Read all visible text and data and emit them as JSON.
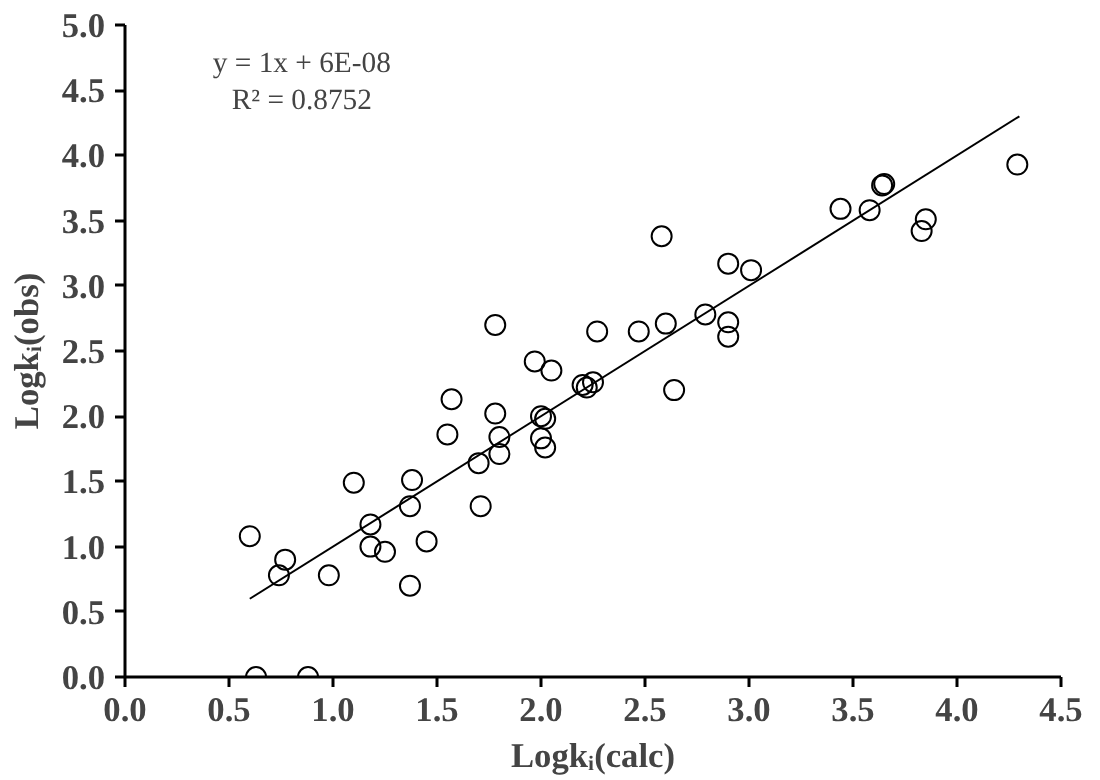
{
  "chart_data": {
    "type": "scatter",
    "xlabel": "Logkᵢ(calc)",
    "ylabel": "Logkᵢ(obs)",
    "xlim": [
      0,
      4.5
    ],
    "ylim": [
      0,
      5
    ],
    "xticks": [
      {
        "value": 0,
        "label": "0.0"
      },
      {
        "value": 0.5,
        "label": "0.5"
      },
      {
        "value": 1,
        "label": "1.0"
      },
      {
        "value": 1.5,
        "label": "1.5"
      },
      {
        "value": 2,
        "label": "2.0"
      },
      {
        "value": 2.5,
        "label": "2.5"
      },
      {
        "value": 3,
        "label": "3.0"
      },
      {
        "value": 3.5,
        "label": "3.5"
      },
      {
        "value": 4,
        "label": "4.0"
      },
      {
        "value": 4.5,
        "label": "4.5"
      }
    ],
    "yticks": [
      {
        "value": 0,
        "label": "0.0"
      },
      {
        "value": 0.5,
        "label": "0.5"
      },
      {
        "value": 1,
        "label": "1.0"
      },
      {
        "value": 1.5,
        "label": "1.5"
      },
      {
        "value": 2,
        "label": "2.0"
      },
      {
        "value": 2.5,
        "label": "2.5"
      },
      {
        "value": 3,
        "label": "3.0"
      },
      {
        "value": 3.5,
        "label": "3.5"
      },
      {
        "value": 4,
        "label": "4.0"
      },
      {
        "value": 4.5,
        "label": "4.5"
      },
      {
        "value": 5,
        "label": "5.0"
      }
    ],
    "grid": false,
    "annotations": [
      "y = 1x + 6E-08",
      "R² = 0.8752"
    ],
    "series": [
      {
        "marker": "circle",
        "color": "#000000",
        "x": [
          0.6,
          0.63,
          0.74,
          0.77,
          0.88,
          0.98,
          1.1,
          1.18,
          1.18,
          1.25,
          1.37,
          1.38,
          1.37,
          1.45,
          1.55,
          1.57,
          1.7,
          1.71,
          1.78,
          1.78,
          1.8,
          1.8,
          1.97,
          2.0,
          2.0,
          2.02,
          2.05,
          2.02,
          2.2,
          2.22,
          2.25,
          2.27,
          2.47,
          2.58,
          2.6,
          2.64,
          2.79,
          2.9,
          2.9,
          2.9,
          3.01,
          3.44,
          3.58,
          3.65,
          3.64,
          3.83,
          3.85,
          4.29
        ],
        "values": [
          1.08,
          0.0,
          0.78,
          0.9,
          0.0,
          0.78,
          1.49,
          1.17,
          1.0,
          0.96,
          1.31,
          1.51,
          0.7,
          1.04,
          1.86,
          2.13,
          1.64,
          1.31,
          2.7,
          2.02,
          1.84,
          1.71,
          2.42,
          2.0,
          1.83,
          1.76,
          2.35,
          1.98,
          2.24,
          2.22,
          2.26,
          2.65,
          2.65,
          3.38,
          2.71,
          2.2,
          2.78,
          3.17,
          2.72,
          2.61,
          3.12,
          3.59,
          3.58,
          3.78,
          3.77,
          3.42,
          3.51,
          3.93
        ]
      },
      {
        "type": "line",
        "color": "#000000",
        "x": [
          0.6,
          4.3
        ],
        "values": [
          0.6,
          4.3
        ]
      }
    ]
  }
}
